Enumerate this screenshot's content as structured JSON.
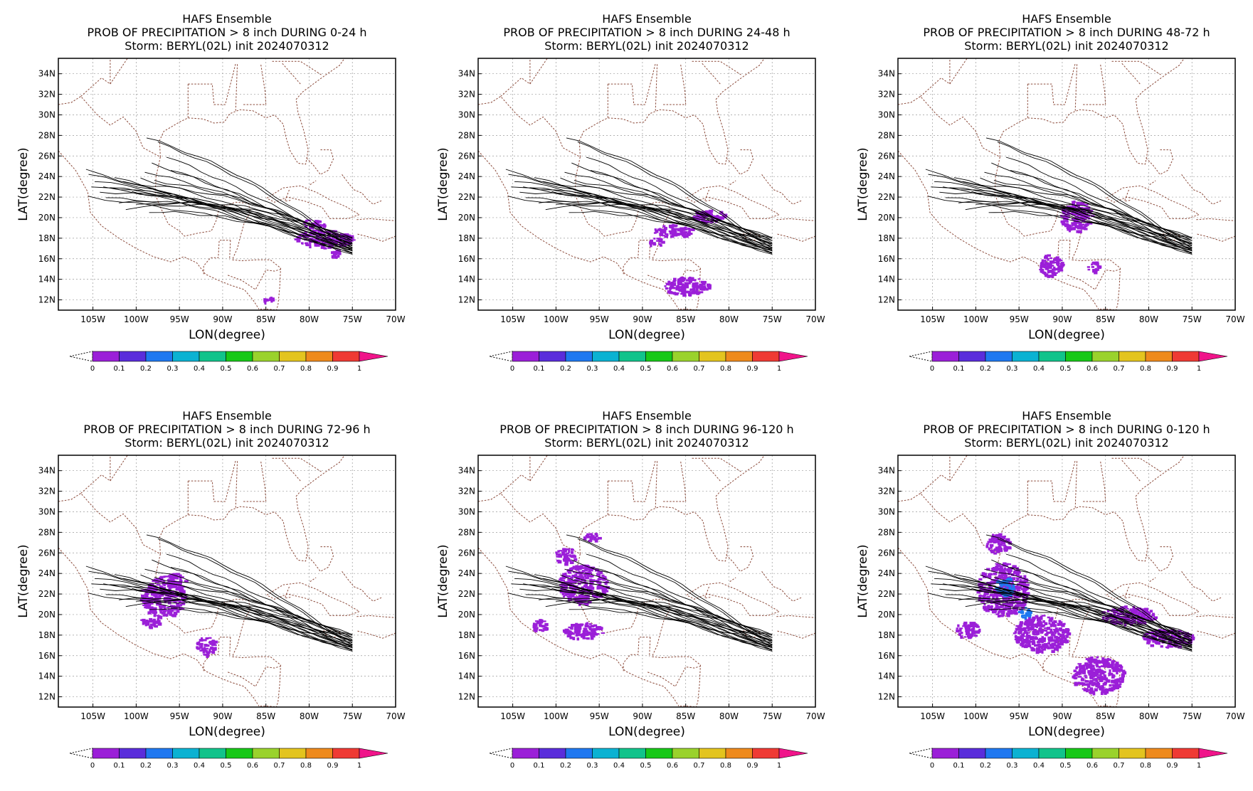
{
  "figure": {
    "background": "#ffffff",
    "coast_color": "#8b4a3a",
    "track_color": "#000000"
  },
  "colorbar": {
    "colors": [
      "#9b1fd8",
      "#5a2ddb",
      "#1f78f0",
      "#0bb2d2",
      "#11c38b",
      "#18c818",
      "#9ad22c",
      "#e3c41e",
      "#ee8a1c",
      "#ef3a34",
      "#f0148a"
    ],
    "ticks": [
      "0",
      "0.1",
      "0.2",
      "0.3",
      "0.4",
      "0.5",
      "0.6",
      "0.7",
      "0.8",
      "0.9",
      "1"
    ]
  },
  "chart_data": [
    {
      "type": "heatmap",
      "title": [
        "HAFS Ensemble",
        "PROB OF PRECIPITATION > 8 inch DURING  0-24 h",
        "Storm: BERYL(02L) init 2024070312"
      ],
      "xlabel": "LON(degree)",
      "ylabel": "LAT(degree)",
      "xlim": [
        -109,
        -70
      ],
      "ylim": [
        11,
        35.5
      ],
      "x_ticks": [
        "105W",
        "100W",
        "95W",
        "90W",
        "85W",
        "80W",
        "75W",
        "70W"
      ],
      "y_ticks": [
        "12N",
        "14N",
        "16N",
        "18N",
        "20N",
        "22N",
        "24N",
        "26N",
        "28N",
        "30N",
        "32N",
        "34N"
      ],
      "grid": true,
      "prob_regions": [
        {
          "lon": -78.5,
          "lat": 18.0,
          "rlon": 3.5,
          "rlat": 0.9,
          "p": 0.05
        },
        {
          "lon": -79.5,
          "lat": 19.5,
          "rlon": 1.5,
          "rlat": 0.4,
          "p": 0.05
        },
        {
          "lon": -84.8,
          "lat": 12.1,
          "rlon": 0.8,
          "rlat": 0.3,
          "p": 0.05
        },
        {
          "lon": -77.0,
          "lat": 16.6,
          "rlon": 0.6,
          "rlat": 0.4,
          "p": 0.05
        }
      ]
    },
    {
      "type": "heatmap",
      "title": [
        "HAFS Ensemble",
        "PROB OF PRECIPITATION > 8 inch DURING 24-48 h",
        "Storm: BERYL(02L) init 2024070312"
      ],
      "xlabel": "LON(degree)",
      "ylabel": "LAT(degree)",
      "xlim": [
        -109,
        -70
      ],
      "ylim": [
        11,
        35.5
      ],
      "x_ticks": [
        "105W",
        "100W",
        "95W",
        "90W",
        "85W",
        "80W",
        "75W",
        "70W"
      ],
      "y_ticks": [
        "12N",
        "14N",
        "16N",
        "18N",
        "20N",
        "22N",
        "24N",
        "26N",
        "28N",
        "30N",
        "32N",
        "34N"
      ],
      "grid": true,
      "prob_regions": [
        {
          "lon": -82.5,
          "lat": 20.3,
          "rlon": 1.9,
          "rlat": 0.6,
          "p": 0.05
        },
        {
          "lon": -86.5,
          "lat": 18.8,
          "rlon": 2.4,
          "rlat": 0.6,
          "p": 0.05
        },
        {
          "lon": -85.0,
          "lat": 13.4,
          "rlon": 2.6,
          "rlat": 0.9,
          "p": 0.05
        },
        {
          "lon": -88.5,
          "lat": 17.7,
          "rlon": 0.8,
          "rlat": 0.4,
          "p": 0.05
        }
      ]
    },
    {
      "type": "heatmap",
      "title": [
        "HAFS Ensemble",
        "PROB OF PRECIPITATION > 8 inch DURING 48-72 h",
        "Storm: BERYL(02L) init 2024070312"
      ],
      "xlabel": "LON(degree)",
      "ylabel": "LAT(degree)",
      "xlim": [
        -109,
        -70
      ],
      "ylim": [
        11,
        35.5
      ],
      "x_ticks": [
        "105W",
        "100W",
        "95W",
        "90W",
        "85W",
        "80W",
        "75W",
        "70W"
      ],
      "y_ticks": [
        "12N",
        "14N",
        "16N",
        "18N",
        "20N",
        "22N",
        "24N",
        "26N",
        "28N",
        "30N",
        "32N",
        "34N"
      ],
      "grid": true,
      "prob_regions": [
        {
          "lon": -88.5,
          "lat": 20.2,
          "rlon": 1.8,
          "rlat": 1.5,
          "p": 0.05
        },
        {
          "lon": -91.5,
          "lat": 15.4,
          "rlon": 1.4,
          "rlat": 1.1,
          "p": 0.05
        },
        {
          "lon": -86.5,
          "lat": 15.3,
          "rlon": 0.7,
          "rlat": 0.5,
          "p": 0.05
        }
      ]
    },
    {
      "type": "heatmap",
      "title": [
        "HAFS Ensemble",
        "PROB OF PRECIPITATION > 8 inch DURING 72-96 h",
        "Storm: BERYL(02L) init 2024070312"
      ],
      "xlabel": "LON(degree)",
      "ylabel": "LAT(degree)",
      "xlim": [
        -109,
        -70
      ],
      "ylim": [
        11,
        35.5
      ],
      "x_ticks": [
        "105W",
        "100W",
        "95W",
        "90W",
        "85W",
        "80W",
        "75W",
        "70W"
      ],
      "y_ticks": [
        "12N",
        "14N",
        "16N",
        "18N",
        "20N",
        "22N",
        "24N",
        "26N",
        "28N",
        "30N",
        "32N",
        "34N"
      ],
      "grid": true,
      "prob_regions": [
        {
          "lon": -97.0,
          "lat": 21.8,
          "rlon": 2.6,
          "rlat": 2.0,
          "p": 0.06
        },
        {
          "lon": -92.0,
          "lat": 17.0,
          "rlon": 1.2,
          "rlat": 0.9,
          "p": 0.05
        },
        {
          "lon": -98.5,
          "lat": 19.3,
          "rlon": 1.2,
          "rlat": 0.5,
          "p": 0.05
        },
        {
          "lon": -95.5,
          "lat": 23.5,
          "rlon": 1.2,
          "rlat": 0.6,
          "p": 0.05
        }
      ]
    },
    {
      "type": "heatmap",
      "title": [
        "HAFS Ensemble",
        "PROB OF PRECIPITATION > 8 inch DURING 96-120 h",
        "Storm: BERYL(02L) init 2024070312"
      ],
      "xlabel": "LON(degree)",
      "ylabel": "LAT(degree)",
      "xlim": [
        -109,
        -70
      ],
      "ylim": [
        11,
        35.5
      ],
      "x_ticks": [
        "105W",
        "100W",
        "95W",
        "90W",
        "85W",
        "80W",
        "75W",
        "70W"
      ],
      "y_ticks": [
        "12N",
        "14N",
        "16N",
        "18N",
        "20N",
        "22N",
        "24N",
        "26N",
        "28N",
        "30N",
        "32N",
        "34N"
      ],
      "grid": true,
      "prob_regions": [
        {
          "lon": -97.0,
          "lat": 23.0,
          "rlon": 2.8,
          "rlat": 1.9,
          "p": 0.06
        },
        {
          "lon": -99.0,
          "lat": 25.8,
          "rlon": 1.2,
          "rlat": 0.8,
          "p": 0.05
        },
        {
          "lon": -96.0,
          "lat": 27.6,
          "rlon": 0.9,
          "rlat": 0.4,
          "p": 0.05
        },
        {
          "lon": -97.0,
          "lat": 18.5,
          "rlon": 2.3,
          "rlat": 0.8,
          "p": 0.05
        },
        {
          "lon": -102.0,
          "lat": 19.0,
          "rlon": 0.9,
          "rlat": 0.6,
          "p": 0.05
        }
      ]
    },
    {
      "type": "heatmap",
      "title": [
        "HAFS Ensemble",
        "PROB OF PRECIPITATION > 8 inch DURING 0-120 h",
        "Storm: BERYL(02L) init 2024070312"
      ],
      "xlabel": "LON(degree)",
      "ylabel": "LAT(degree)",
      "xlim": [
        -109,
        -70
      ],
      "ylim": [
        11,
        35.5
      ],
      "x_ticks": [
        "105W",
        "100W",
        "95W",
        "90W",
        "85W",
        "80W",
        "75W",
        "70W"
      ],
      "y_ticks": [
        "12N",
        "14N",
        "16N",
        "18N",
        "20N",
        "22N",
        "24N",
        "26N",
        "28N",
        "30N",
        "32N",
        "34N"
      ],
      "grid": true,
      "prob_regions": [
        {
          "lon": -97.0,
          "lat": 22.5,
          "rlon": 3.0,
          "rlat": 2.6,
          "p": 0.08
        },
        {
          "lon": -96.8,
          "lat": 22.8,
          "rlon": 1.1,
          "rlat": 0.9,
          "p": 0.2
        },
        {
          "lon": -94.5,
          "lat": 20.3,
          "rlon": 0.7,
          "rlat": 0.6,
          "p": 0.2
        },
        {
          "lon": -92.5,
          "lat": 18.2,
          "rlon": 3.2,
          "rlat": 1.8,
          "p": 0.06
        },
        {
          "lon": -82.5,
          "lat": 20.0,
          "rlon": 3.2,
          "rlat": 0.9,
          "p": 0.05
        },
        {
          "lon": -78.0,
          "lat": 17.8,
          "rlon": 3.0,
          "rlat": 0.9,
          "p": 0.05
        },
        {
          "lon": -86.0,
          "lat": 14.2,
          "rlon": 3.0,
          "rlat": 1.8,
          "p": 0.05
        },
        {
          "lon": -97.5,
          "lat": 27.0,
          "rlon": 1.4,
          "rlat": 1.0,
          "p": 0.05
        },
        {
          "lon": -101.0,
          "lat": 18.6,
          "rlon": 1.5,
          "rlat": 0.8,
          "p": 0.05
        }
      ]
    }
  ]
}
